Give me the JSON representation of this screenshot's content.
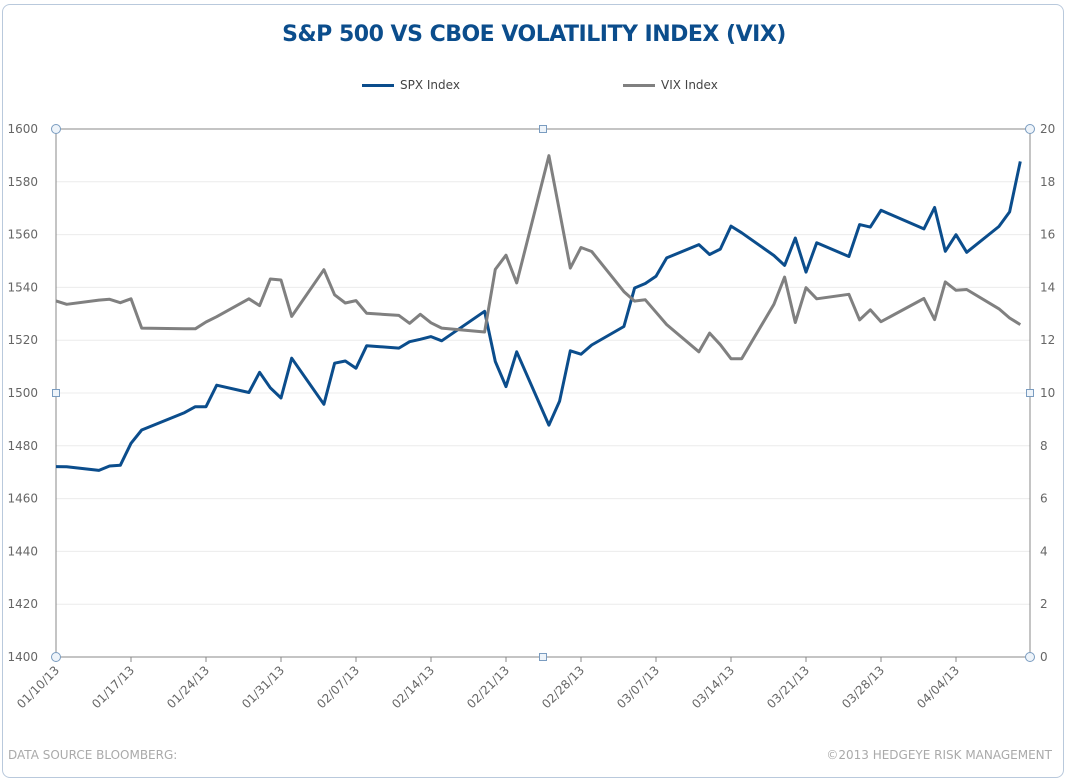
{
  "chart_data": {
    "type": "line",
    "title": "S&P 500 VS CBOE VOLATILITY INDEX (VIX)",
    "legend_position": "top",
    "grid": true,
    "left_axis": {
      "ylim": [
        1400,
        1600
      ],
      "ticks": [
        1400,
        1420,
        1440,
        1460,
        1480,
        1500,
        1520,
        1540,
        1560,
        1580,
        1600
      ]
    },
    "right_axis": {
      "ylim": [
        0,
        20
      ],
      "ticks": [
        0,
        2,
        4,
        6,
        8,
        10,
        12,
        14,
        16,
        18,
        20
      ]
    },
    "x_tick_labels": [
      "01/10/13",
      "01/17/13",
      "01/24/13",
      "01/31/13",
      "02/07/13",
      "02/14/13",
      "02/21/13",
      "02/28/13",
      "03/07/13",
      "03/14/13",
      "03/21/13",
      "03/28/13",
      "04/04/13"
    ],
    "x": [
      "2013-01-10",
      "2013-01-11",
      "2013-01-14",
      "2013-01-15",
      "2013-01-16",
      "2013-01-17",
      "2013-01-18",
      "2013-01-22",
      "2013-01-23",
      "2013-01-24",
      "2013-01-25",
      "2013-01-28",
      "2013-01-29",
      "2013-01-30",
      "2013-01-31",
      "2013-02-01",
      "2013-02-04",
      "2013-02-05",
      "2013-02-06",
      "2013-02-07",
      "2013-02-08",
      "2013-02-11",
      "2013-02-12",
      "2013-02-13",
      "2013-02-14",
      "2013-02-15",
      "2013-02-19",
      "2013-02-20",
      "2013-02-21",
      "2013-02-22",
      "2013-02-25",
      "2013-02-26",
      "2013-02-27",
      "2013-02-28",
      "2013-03-01",
      "2013-03-04",
      "2013-03-05",
      "2013-03-06",
      "2013-03-07",
      "2013-03-08",
      "2013-03-11",
      "2013-03-12",
      "2013-03-13",
      "2013-03-14",
      "2013-03-15",
      "2013-03-18",
      "2013-03-19",
      "2013-03-20",
      "2013-03-21",
      "2013-03-22",
      "2013-03-25",
      "2013-03-26",
      "2013-03-27",
      "2013-03-28",
      "2013-04-01",
      "2013-04-02",
      "2013-04-03",
      "2013-04-04",
      "2013-04-05",
      "2013-04-08",
      "2013-04-09",
      "2013-04-10"
    ],
    "series": [
      {
        "name": "SPX Index",
        "axis": "left",
        "color": "#0b4d8c",
        "values": [
          1472.12,
          1472.05,
          1470.68,
          1472.34,
          1472.63,
          1480.94,
          1485.98,
          1492.56,
          1494.81,
          1494.82,
          1502.96,
          1500.18,
          1507.84,
          1501.96,
          1498.11,
          1513.17,
          1495.71,
          1511.29,
          1512.12,
          1509.39,
          1517.93,
          1517.01,
          1519.43,
          1520.33,
          1521.38,
          1519.79,
          1530.94,
          1511.95,
          1502.42,
          1515.6,
          1487.85,
          1496.94,
          1515.99,
          1514.68,
          1518.2,
          1525.2,
          1539.79,
          1541.46,
          1544.26,
          1551.18,
          1556.22,
          1552.48,
          1554.52,
          1563.23,
          1560.7,
          1552.1,
          1548.34,
          1558.71,
          1545.8,
          1556.89,
          1551.69,
          1563.77,
          1562.85,
          1569.19,
          1562.17,
          1570.25,
          1553.69,
          1559.98,
          1553.28,
          1563.07,
          1568.61,
          1587.73
        ]
      },
      {
        "name": "VIX Index",
        "axis": "right",
        "color": "#808080",
        "values": [
          13.49,
          13.36,
          13.52,
          13.55,
          13.42,
          13.57,
          12.46,
          12.43,
          12.43,
          12.69,
          12.89,
          13.57,
          13.31,
          14.32,
          14.28,
          12.9,
          14.67,
          13.72,
          13.41,
          13.5,
          13.02,
          12.94,
          12.64,
          12.98,
          12.66,
          12.46,
          12.31,
          14.68,
          15.22,
          14.17,
          18.99,
          16.87,
          14.73,
          15.51,
          15.36,
          13.84,
          13.48,
          13.53,
          13.06,
          12.59,
          11.56,
          12.27,
          11.83,
          11.3,
          11.3,
          13.36,
          14.39,
          12.67,
          13.99,
          13.57,
          13.74,
          12.77,
          13.15,
          12.7,
          13.58,
          12.78,
          14.21,
          13.89,
          13.92,
          13.19,
          12.84,
          12.59
        ]
      }
    ]
  },
  "footer": {
    "source": "DATA SOURCE BLOOMBERG:",
    "copyright": "©2013 HEDGEYE RISK MANAGEMENT"
  }
}
